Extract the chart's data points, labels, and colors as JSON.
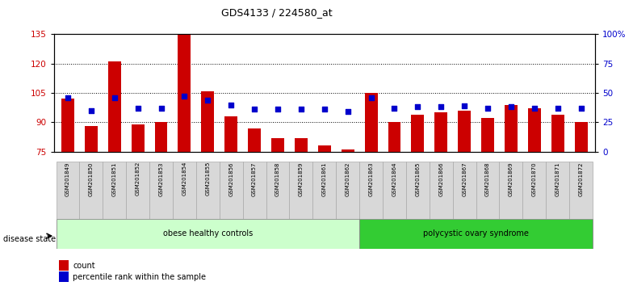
{
  "title": "GDS4133 / 224580_at",
  "samples": [
    "GSM201849",
    "GSM201850",
    "GSM201851",
    "GSM201852",
    "GSM201853",
    "GSM201854",
    "GSM201855",
    "GSM201856",
    "GSM201857",
    "GSM201858",
    "GSM201859",
    "GSM201861",
    "GSM201862",
    "GSM201863",
    "GSM201864",
    "GSM201865",
    "GSM201866",
    "GSM201867",
    "GSM201868",
    "GSM201869",
    "GSM201870",
    "GSM201871",
    "GSM201872"
  ],
  "counts": [
    102,
    88,
    121,
    89,
    90,
    136,
    106,
    93,
    87,
    82,
    82,
    78,
    76,
    105,
    90,
    94,
    95,
    96,
    92,
    99,
    97,
    94,
    90
  ],
  "percentiles": [
    46,
    35,
    46,
    37,
    37,
    47,
    44,
    40,
    36,
    36,
    36,
    36,
    34,
    46,
    37,
    38,
    38,
    39,
    37,
    38,
    37,
    37,
    37
  ],
  "group1_label": "obese healthy controls",
  "group2_label": "polycystic ovary syndrome",
  "group1_count": 13,
  "group2_count": 10,
  "ylim_left": [
    75,
    135
  ],
  "ylim_right": [
    0,
    100
  ],
  "yticks_left": [
    75,
    90,
    105,
    120,
    135
  ],
  "yticks_right": [
    0,
    25,
    50,
    75,
    100
  ],
  "bar_color": "#cc0000",
  "dot_color": "#0000cc",
  "bar_width": 0.55,
  "grid_color": "black",
  "bg_color": "#ffffff",
  "plot_bg": "#ffffff",
  "group1_bg": "#ccffcc",
  "group2_bg": "#33cc33",
  "legend_count_label": "count",
  "legend_pct_label": "percentile rank within the sample",
  "ylabel_left_color": "#cc0000",
  "ylabel_right_color": "#0000cc",
  "gridlines_at": [
    90,
    105,
    120
  ]
}
